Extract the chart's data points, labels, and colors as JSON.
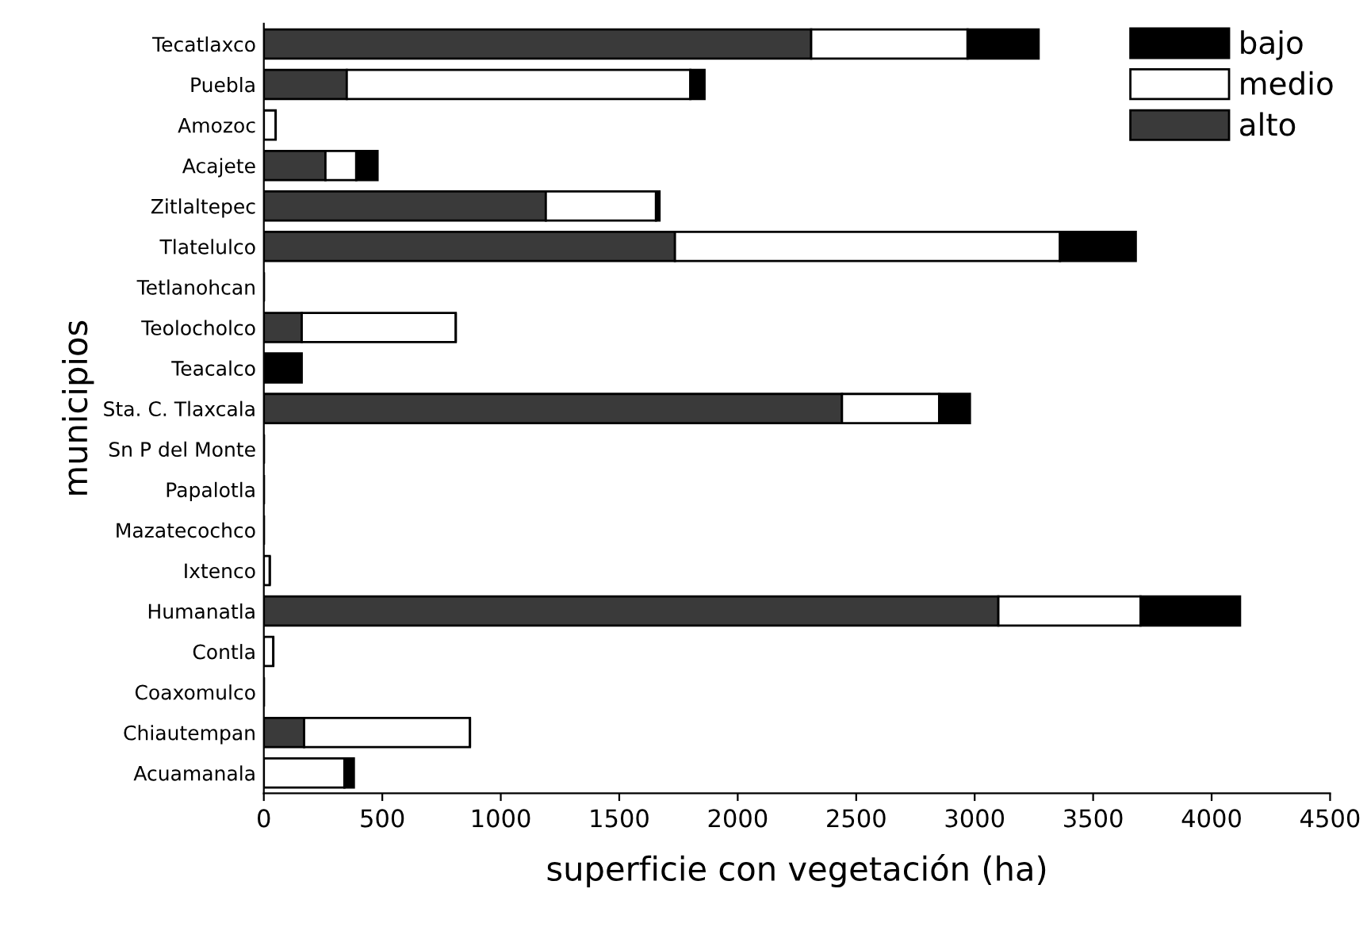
{
  "chart_data": {
    "type": "bar",
    "orientation": "horizontal",
    "stacked": true,
    "xlabel": "superficie con vegetación (ha)",
    "ylabel": "municipios",
    "categories": [
      "Tecatlaxco",
      "Puebla",
      "Amozoc",
      "Acajete",
      "Zitlaltepec",
      "Tlatelulco",
      "Tetlanohcan",
      "Teolocholco",
      "Teacalco",
      "Sta. C. Tlaxcala",
      "Sn P del Monte",
      "Papalotla",
      "Mazatecochco",
      "Ixtenco",
      "Humanatla",
      "Contla",
      "Coaxomulco",
      "Chiautempan",
      "Acuamanala"
    ],
    "series": [
      {
        "name": "alto",
        "color": "#3a3a3a",
        "values": [
          2310,
          350,
          0,
          260,
          1190,
          1735,
          0,
          160,
          0,
          2440,
          0,
          0,
          0,
          0,
          3100,
          0,
          0,
          170,
          0
        ]
      },
      {
        "name": "medio",
        "color": "#ffffff",
        "values": [
          660,
          1450,
          50,
          130,
          465,
          1625,
          0,
          650,
          0,
          410,
          0,
          0,
          0,
          25,
          600,
          40,
          0,
          700,
          340
        ]
      },
      {
        "name": "bajo",
        "color": "#000000",
        "values": [
          300,
          60,
          0,
          90,
          15,
          320,
          0,
          0,
          160,
          130,
          0,
          0,
          0,
          0,
          420,
          0,
          0,
          0,
          40
        ]
      }
    ],
    "xlim": [
      0,
      4500
    ],
    "xticks": [
      0,
      500,
      1000,
      1500,
      2000,
      2500,
      3000,
      3500,
      4000,
      4500
    ],
    "legend": "top right",
    "grid": false
  }
}
